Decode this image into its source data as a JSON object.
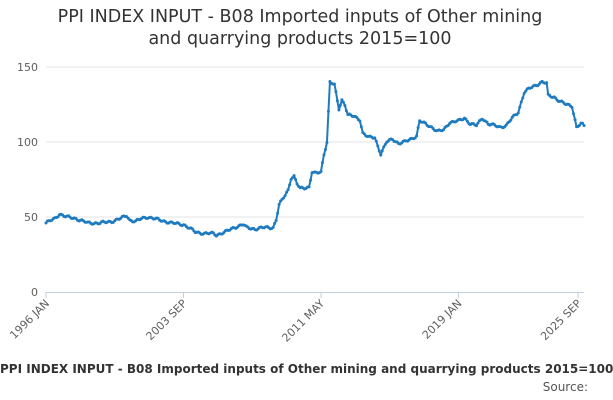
{
  "chart_data": {
    "type": "line",
    "title_lines": [
      "PPI INDEX INPUT - B08 Imported inputs of Other mining",
      "and quarrying products 2015=100"
    ],
    "ylim": [
      0,
      150
    ],
    "y_ticks": [
      0,
      50,
      100,
      150
    ],
    "x_ticks": [
      "1996 JAN",
      "2003 SEP",
      "2011 MAY",
      "2019 JAN",
      "2025 SEP"
    ],
    "x_tick_index": [
      0,
      92,
      184,
      276,
      356
    ],
    "series": [
      {
        "name": "PPI INDEX INPUT - B08 Imported inputs of Other mining and quarrying products 2015=100",
        "color": "#1f7bbf",
        "key_points": [
          [
            0,
            46
          ],
          [
            6,
            49
          ],
          [
            9,
            52
          ],
          [
            14,
            50
          ],
          [
            20,
            49
          ],
          [
            28,
            46
          ],
          [
            36,
            46
          ],
          [
            44,
            47
          ],
          [
            50,
            49
          ],
          [
            54,
            51
          ],
          [
            56,
            48
          ],
          [
            60,
            47
          ],
          [
            64,
            49
          ],
          [
            68,
            50
          ],
          [
            76,
            48
          ],
          [
            84,
            46
          ],
          [
            92,
            45
          ],
          [
            100,
            40
          ],
          [
            106,
            39
          ],
          [
            112,
            39
          ],
          [
            114,
            38
          ],
          [
            120,
            40
          ],
          [
            126,
            43
          ],
          [
            132,
            45
          ],
          [
            134,
            43
          ],
          [
            140,
            42
          ],
          [
            146,
            43
          ],
          [
            152,
            43
          ],
          [
            154,
            48
          ],
          [
            156,
            58
          ],
          [
            162,
            68
          ],
          [
            164,
            76
          ],
          [
            166,
            77
          ],
          [
            168,
            72
          ],
          [
            170,
            69
          ],
          [
            176,
            70
          ],
          [
            178,
            80
          ],
          [
            180,
            79
          ],
          [
            184,
            80
          ],
          [
            186,
            92
          ],
          [
            188,
            100
          ],
          [
            190,
            140
          ],
          [
            193,
            138
          ],
          [
            196,
            122
          ],
          [
            198,
            128
          ],
          [
            200,
            125
          ],
          [
            202,
            118
          ],
          [
            206,
            117
          ],
          [
            210,
            115
          ],
          [
            212,
            106
          ],
          [
            216,
            103
          ],
          [
            220,
            103
          ],
          [
            224,
            92
          ],
          [
            228,
            100
          ],
          [
            232,
            102
          ],
          [
            236,
            99
          ],
          [
            240,
            100
          ],
          [
            244,
            102
          ],
          [
            248,
            104
          ],
          [
            250,
            114
          ],
          [
            254,
            112
          ],
          [
            258,
            110
          ],
          [
            262,
            107
          ],
          [
            266,
            108
          ],
          [
            270,
            113
          ],
          [
            276,
            114
          ],
          [
            280,
            116
          ],
          [
            284,
            112
          ],
          [
            288,
            111
          ],
          [
            292,
            116
          ],
          [
            296,
            112
          ],
          [
            300,
            111
          ],
          [
            304,
            110
          ],
          [
            308,
            111
          ],
          [
            312,
            116
          ],
          [
            316,
            120
          ],
          [
            320,
            133
          ],
          [
            324,
            136
          ],
          [
            328,
            138
          ],
          [
            332,
            140
          ],
          [
            335,
            139
          ],
          [
            336,
            131
          ],
          [
            340,
            130
          ],
          [
            344,
            127
          ],
          [
            348,
            125
          ],
          [
            352,
            124
          ],
          [
            355,
            110
          ],
          [
            358,
            112
          ],
          [
            360,
            111
          ]
        ]
      }
    ]
  },
  "footer": {
    "caption": "PPI INDEX INPUT - B08 Imported inputs of Other mining and quarrying products 2015=100",
    "source": "Source:"
  }
}
